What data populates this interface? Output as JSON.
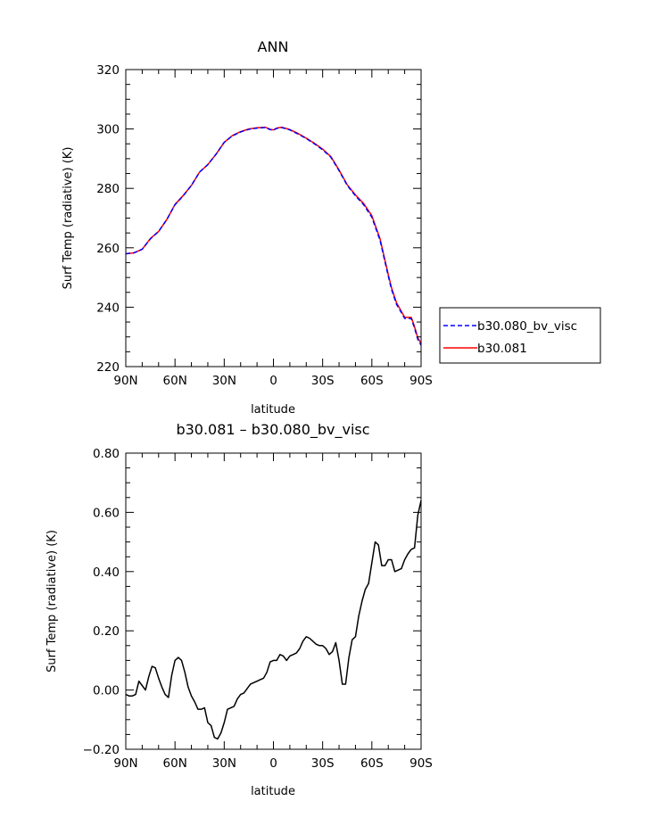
{
  "chart_data": [
    {
      "type": "line",
      "title": "ANN",
      "xlabel": "latitude",
      "ylabel": "Surf Temp (radiative) (K)",
      "xlim": [
        90,
        -90
      ],
      "ylim": [
        220,
        320
      ],
      "x_tick_values": [
        90,
        60,
        30,
        0,
        -30,
        -60,
        -90
      ],
      "x_tick_labels": [
        "90N",
        "60N",
        "30N",
        "0",
        "30S",
        "60S",
        "90S"
      ],
      "y_tick_values": [
        220,
        240,
        260,
        280,
        300,
        320
      ],
      "y_tick_labels": [
        "220",
        "240",
        "260",
        "280",
        "300",
        "320"
      ],
      "grid": false,
      "legend_position": "right",
      "series": [
        {
          "name": "b30.080_bv_visc",
          "color": "#0000ff",
          "dash": "dashed",
          "x": [
            90,
            85,
            80,
            75,
            70,
            65,
            60,
            55,
            50,
            45,
            40,
            35,
            30,
            25,
            20,
            15,
            10,
            5,
            2,
            0,
            -2,
            -5,
            -10,
            -15,
            -20,
            -25,
            -30,
            -35,
            -40,
            -45,
            -50,
            -55,
            -60,
            -65,
            -70,
            -72,
            -75,
            -78,
            -80,
            -82,
            -84,
            -86,
            -88,
            -90
          ],
          "y": [
            258,
            258.3,
            259.5,
            263,
            265.5,
            269.5,
            274.5,
            277.5,
            281,
            285.5,
            288,
            291.5,
            295.5,
            297.7,
            299,
            299.9,
            300.3,
            300.5,
            299.8,
            299.6,
            300.2,
            300.5,
            299.7,
            298.3,
            296.8,
            295,
            293,
            290.5,
            286,
            281,
            277.5,
            274.5,
            270.3,
            262.5,
            250.5,
            246,
            241,
            238.2,
            236.2,
            236.2,
            236.2,
            233,
            229.2,
            227.2
          ]
        },
        {
          "name": "b30.081",
          "color": "#ff0000",
          "dash": "solid",
          "x": [
            90,
            85,
            80,
            75,
            70,
            65,
            60,
            55,
            50,
            45,
            40,
            35,
            30,
            25,
            20,
            15,
            10,
            5,
            2,
            0,
            -2,
            -5,
            -10,
            -15,
            -20,
            -25,
            -30,
            -35,
            -40,
            -45,
            -50,
            -55,
            -60,
            -65,
            -70,
            -72,
            -75,
            -78,
            -80,
            -82,
            -84,
            -86,
            -88,
            -90
          ],
          "y": [
            258,
            258.3,
            259.5,
            263.1,
            265.5,
            269.5,
            274.6,
            277.6,
            281,
            285.5,
            288,
            291.5,
            295.5,
            297.8,
            299.1,
            300,
            300.4,
            300.6,
            299.9,
            299.7,
            300.3,
            300.6,
            299.8,
            298.5,
            296.9,
            295.2,
            293.2,
            290.7,
            286.2,
            281.2,
            277.8,
            274.9,
            270.8,
            263,
            251,
            246.5,
            241.5,
            238.6,
            236.6,
            236.6,
            236.6,
            233.5,
            229.7,
            227.8
          ]
        }
      ]
    },
    {
      "type": "line",
      "title": "b30.081 – b30.080_bv_visc",
      "xlabel": "latitude",
      "ylabel": "Surf Temp (radiative) (K)",
      "xlim": [
        90,
        -90
      ],
      "ylim": [
        -0.2,
        0.8
      ],
      "x_tick_values": [
        90,
        60,
        30,
        0,
        -30,
        -60,
        -90
      ],
      "x_tick_labels": [
        "90N",
        "60N",
        "30N",
        "0",
        "30S",
        "60S",
        "90S"
      ],
      "y_tick_values": [
        -0.2,
        0,
        0.2,
        0.4,
        0.6,
        0.8
      ],
      "y_tick_labels": [
        "−0.20",
        "0.00",
        "0.20",
        "0.40",
        "0.60",
        "0.80"
      ],
      "grid": false,
      "series": [
        {
          "color": "#000000",
          "dash": "solid",
          "x": [
            90,
            88,
            86,
            84,
            82,
            80,
            78,
            76,
            74,
            72,
            70,
            68,
            66,
            64,
            62,
            60,
            58,
            56,
            54,
            52,
            50,
            48,
            46,
            44,
            42,
            40,
            38,
            36,
            34,
            32,
            30,
            28,
            26,
            24,
            22,
            20,
            18,
            16,
            14,
            12,
            10,
            8,
            6,
            4,
            2,
            0,
            -2,
            -4,
            -6,
            -8,
            -10,
            -12,
            -14,
            -16,
            -18,
            -20,
            -22,
            -24,
            -26,
            -28,
            -30,
            -32,
            -34,
            -36,
            -38,
            -40,
            -42,
            -44,
            -46,
            -48,
            -50,
            -52,
            -54,
            -56,
            -58,
            -60,
            -62,
            -64,
            -66,
            -68,
            -70,
            -72,
            -74,
            -76,
            -78,
            -80,
            -82,
            -84,
            -86,
            -88,
            -90
          ],
          "y": [
            -0.015,
            -0.02,
            -0.02,
            -0.015,
            0.03,
            0.015,
            0.0,
            0.045,
            0.08,
            0.075,
            0.04,
            0.01,
            -0.015,
            -0.025,
            0.05,
            0.1,
            0.11,
            0.1,
            0.06,
            0.01,
            -0.02,
            -0.04,
            -0.065,
            -0.065,
            -0.06,
            -0.11,
            -0.12,
            -0.16,
            -0.165,
            -0.145,
            -0.11,
            -0.065,
            -0.06,
            -0.055,
            -0.03,
            -0.015,
            -0.01,
            0.005,
            0.02,
            0.025,
            0.03,
            0.035,
            0.04,
            0.06,
            0.095,
            0.1,
            0.1,
            0.12,
            0.115,
            0.1,
            0.115,
            0.12,
            0.125,
            0.14,
            0.165,
            0.18,
            0.175,
            0.165,
            0.155,
            0.15,
            0.15,
            0.14,
            0.12,
            0.13,
            0.16,
            0.1,
            0.02,
            0.02,
            0.11,
            0.17,
            0.18,
            0.25,
            0.3,
            0.34,
            0.36,
            0.43,
            0.5,
            0.49,
            0.42,
            0.42,
            0.44,
            0.44,
            0.4,
            0.405,
            0.41,
            0.44,
            0.46,
            0.475,
            0.48,
            0.59,
            0.64
          ]
        }
      ]
    }
  ]
}
